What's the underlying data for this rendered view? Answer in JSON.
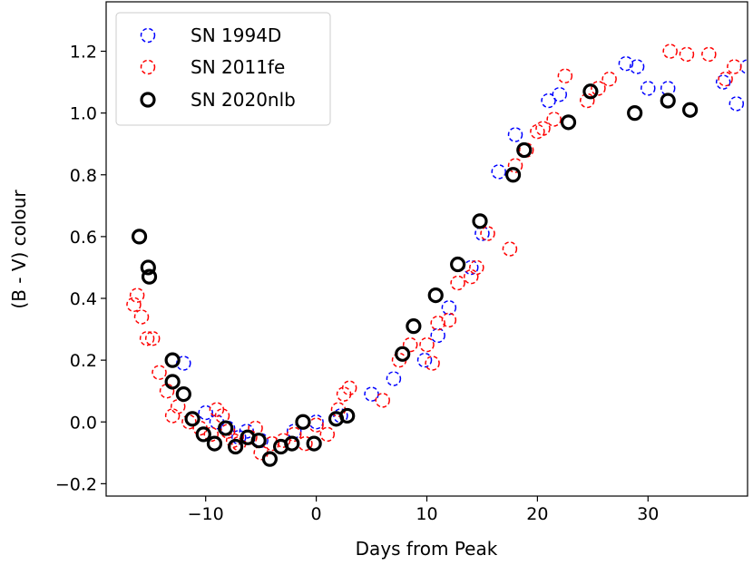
{
  "chart_data": {
    "type": "scatter",
    "xlabel": "Days from Peak",
    "ylabel": "(B - V) colour",
    "xlim": [
      -19,
      39
    ],
    "ylim": [
      -0.24,
      1.36
    ],
    "xticks": [
      -10,
      0,
      10,
      20,
      30
    ],
    "xtick_labels": [
      "−10",
      "0",
      "10",
      "20",
      "30"
    ],
    "yticks": [
      -0.2,
      0.0,
      0.2,
      0.4,
      0.6,
      0.8,
      1.0,
      1.2
    ],
    "ytick_labels": [
      "−0.2",
      "0.0",
      "0.2",
      "0.4",
      "0.6",
      "0.8",
      "1.0",
      "1.2"
    ],
    "grid": false,
    "legend_position": "top-left",
    "series": [
      {
        "name": "SN 1994D",
        "color": "#0000ff",
        "marker": "dashed-circle",
        "points": [
          [
            -12.0,
            0.19
          ],
          [
            -10.0,
            0.03
          ],
          [
            -9.0,
            0.0
          ],
          [
            -8.0,
            -0.02
          ],
          [
            -7.0,
            -0.05
          ],
          [
            -6.3,
            -0.03
          ],
          [
            -5.0,
            -0.06
          ],
          [
            -2.0,
            -0.03
          ],
          [
            0.0,
            0.0
          ],
          [
            2.2,
            0.02
          ],
          [
            5.0,
            0.09
          ],
          [
            7.0,
            0.14
          ],
          [
            9.8,
            0.2
          ],
          [
            11.0,
            0.28
          ],
          [
            12.0,
            0.37
          ],
          [
            14.0,
            0.5
          ],
          [
            15.0,
            0.61
          ],
          [
            16.5,
            0.81
          ],
          [
            18.0,
            0.93
          ],
          [
            21.0,
            1.04
          ],
          [
            22.0,
            1.06
          ],
          [
            28.0,
            1.16
          ],
          [
            29.0,
            1.15
          ],
          [
            30.0,
            1.08
          ],
          [
            31.8,
            1.08
          ],
          [
            36.8,
            1.1
          ],
          [
            38.0,
            1.03
          ],
          [
            39.0,
            1.15
          ]
        ]
      },
      {
        "name": "SN 2011fe",
        "color": "#ff0000",
        "marker": "dashed-circle",
        "points": [
          [
            -16.5,
            0.38
          ],
          [
            -16.2,
            0.41
          ],
          [
            -15.8,
            0.34
          ],
          [
            -15.3,
            0.27
          ],
          [
            -14.8,
            0.27
          ],
          [
            -14.2,
            0.16
          ],
          [
            -13.5,
            0.1
          ],
          [
            -13.0,
            0.02
          ],
          [
            -12.5,
            0.05
          ],
          [
            -11.5,
            0.0
          ],
          [
            -10.5,
            -0.02
          ],
          [
            -9.5,
            -0.04
          ],
          [
            -9.0,
            0.04
          ],
          [
            -8.5,
            0.02
          ],
          [
            -8.0,
            -0.03
          ],
          [
            -7.5,
            -0.06
          ],
          [
            -7.0,
            -0.07
          ],
          [
            -6.0,
            -0.05
          ],
          [
            -5.5,
            -0.02
          ],
          [
            -5.0,
            -0.1
          ],
          [
            -4.0,
            -0.07
          ],
          [
            -3.0,
            -0.06
          ],
          [
            -2.0,
            -0.04
          ],
          [
            -1.0,
            -0.07
          ],
          [
            0.0,
            -0.01
          ],
          [
            1.0,
            -0.04
          ],
          [
            2.0,
            0.04
          ],
          [
            2.5,
            0.09
          ],
          [
            3.0,
            0.11
          ],
          [
            6.0,
            0.07
          ],
          [
            7.5,
            0.2
          ],
          [
            8.5,
            0.25
          ],
          [
            10.0,
            0.25
          ],
          [
            10.5,
            0.19
          ],
          [
            11.0,
            0.32
          ],
          [
            12.0,
            0.33
          ],
          [
            12.8,
            0.45
          ],
          [
            14.0,
            0.47
          ],
          [
            14.5,
            0.5
          ],
          [
            15.5,
            0.61
          ],
          [
            17.5,
            0.56
          ],
          [
            18.0,
            0.83
          ],
          [
            19.0,
            0.88
          ],
          [
            20.0,
            0.94
          ],
          [
            20.5,
            0.95
          ],
          [
            21.5,
            0.98
          ],
          [
            22.5,
            1.12
          ],
          [
            24.5,
            1.04
          ],
          [
            25.5,
            1.08
          ],
          [
            26.5,
            1.11
          ],
          [
            32.0,
            1.2
          ],
          [
            33.5,
            1.19
          ],
          [
            35.5,
            1.19
          ],
          [
            37.0,
            1.11
          ],
          [
            37.8,
            1.15
          ]
        ]
      },
      {
        "name": "SN 2020nlb",
        "color": "#000000",
        "marker": "solid-circle",
        "points": [
          [
            -16.0,
            0.6
          ],
          [
            -15.2,
            0.5
          ],
          [
            -15.1,
            0.47
          ],
          [
            -13.0,
            0.2
          ],
          [
            -13.0,
            0.13
          ],
          [
            -12.0,
            0.09
          ],
          [
            -11.2,
            0.01
          ],
          [
            -10.2,
            -0.04
          ],
          [
            -9.2,
            -0.07
          ],
          [
            -8.2,
            -0.02
          ],
          [
            -7.3,
            -0.08
          ],
          [
            -6.2,
            -0.05
          ],
          [
            -5.2,
            -0.06
          ],
          [
            -4.2,
            -0.12
          ],
          [
            -3.2,
            -0.08
          ],
          [
            -2.2,
            -0.07
          ],
          [
            -1.2,
            0.0
          ],
          [
            -0.2,
            -0.07
          ],
          [
            1.8,
            0.01
          ],
          [
            2.8,
            0.02
          ],
          [
            7.8,
            0.22
          ],
          [
            8.8,
            0.31
          ],
          [
            10.8,
            0.41
          ],
          [
            12.8,
            0.51
          ],
          [
            14.8,
            0.65
          ],
          [
            17.8,
            0.8
          ],
          [
            18.8,
            0.88
          ],
          [
            22.8,
            0.97
          ],
          [
            24.8,
            1.07
          ],
          [
            28.8,
            1.0
          ],
          [
            31.8,
            1.04
          ],
          [
            33.8,
            1.01
          ]
        ]
      }
    ]
  }
}
